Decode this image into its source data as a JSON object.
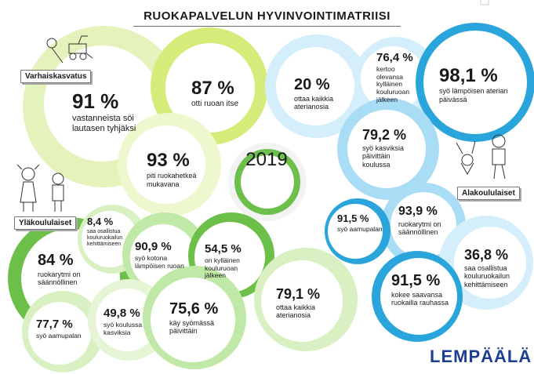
{
  "title": "RUOKAPALVELUN HYVINVOINTIMATRIISI",
  "year": "2019",
  "categories": {
    "varhaiskasvatus": "Varhaiskasvatus",
    "alakoulu": "Alakoululaiset",
    "ylakoulu": "Yläkoululaiset"
  },
  "stats": {
    "v1": {
      "num": "91 %",
      "text": "vastanneista söi lautasen tyhjäksi"
    },
    "v2": {
      "num": "87 %",
      "text": "otti ruoan itse"
    },
    "v3": {
      "num": "93 %",
      "text": "piti ruokahetkeä mukavana"
    },
    "a1": {
      "num": "20 %",
      "text": "ottaa kaikkia aterianosia"
    },
    "a2": {
      "num": "76,4 %",
      "text": "kertoo olevansa kylläinen kouluruoan jälkeen"
    },
    "a3": {
      "num": "98,1 %",
      "text": "syö lämpöisen aterian päivässä"
    },
    "a4": {
      "num": "79,2 %",
      "text": "syö kasviksia päivittäin koulussa"
    },
    "a5": {
      "num": "91,5 %",
      "text": "syö aamupalan"
    },
    "a6": {
      "num": "93,9 %",
      "text": "ruokarytmi on säännöllinen"
    },
    "a7": {
      "num": "36,8 %",
      "text": "saa osallistua kouluruokailun kehittämiseen"
    },
    "a8": {
      "num": "91,5 %",
      "text": "kokee saavansa ruokailla rauhassa"
    },
    "y1": {
      "num": "8,4 %",
      "text": "saa osallistua kouluruokailun kehittämiseen"
    },
    "y2": {
      "num": "84 %",
      "text": "ruokarytmi on säännöllinen"
    },
    "y3": {
      "num": "90,9 %",
      "text": "syö kotona lämpöisen ruoan"
    },
    "y4": {
      "num": "54,5 %",
      "text": "on kylläinen kouluruoan jälkeen"
    },
    "y5": {
      "num": "79,1 %",
      "text": "ottaa kaikkia aterianosia"
    },
    "y6": {
      "num": "77,7 %",
      "text": "syö aamupalan"
    },
    "y7": {
      "num": "49,8 %",
      "text": "syö koulussa kasviksia"
    },
    "y8": {
      "num": "75,6 %",
      "text": "käy syömässä päivittäin"
    }
  },
  "logo": "LEMPÄÄLÄ",
  "colors": {
    "green_dark": "#6cc04a",
    "green_mid": "#8fd36d",
    "green_light": "#ddf3c6",
    "lime_light": "#e7f4b8",
    "blue_dark": "#2aa5dc",
    "blue_mid": "#7fcaf0",
    "blue_light": "#d4eefb",
    "logo_blue": "#1e3f8f"
  }
}
